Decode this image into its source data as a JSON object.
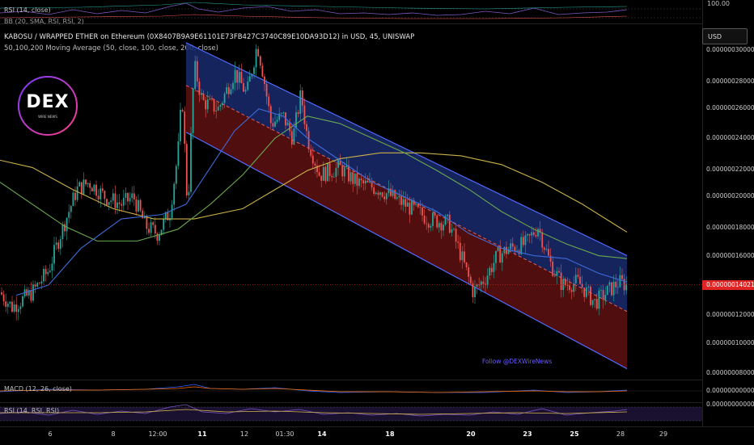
{
  "indicators": {
    "rsi_top": "RSI (14, close)",
    "bb_top": "BB (20, SMA, RSI, RSI, 2)",
    "macd": "MACD (12, 26, close)",
    "rsi_bottom": "RSI (14, RSI, RSI)",
    "rsi_top_level": "100.00"
  },
  "header": {
    "symbol_line": "KABOSU / WRAPPED ETHER on Ethereum (0X8407B9A9E61101E73FB427C3740C89E10DA93D12) in USD, 45, UNISWAP",
    "ma_line": "50,100,200 Moving Average (50, close, 100, close, 200, close)"
  },
  "currency_button": "USD",
  "logo": {
    "text": "DEX",
    "subtext": "WIRE NEWS"
  },
  "watermark": "Follow @DEXWireNews",
  "price_axis": {
    "ticks": [
      "0.0000003000000",
      "0.0000002800000",
      "0.0000002600000",
      "0.0000002400000",
      "0.0000002200000",
      "0.0000002000000",
      "0.0000001800000",
      "0.0000001600000",
      "0.0000001200000",
      "0.0000001000000",
      "0.0000000800000"
    ],
    "current_price": "0.0000001402132",
    "macd_value": "0.0000000000000",
    "macd_value2": "0.0000000000000"
  },
  "time_axis": {
    "labels": [
      "6",
      "8",
      "12:00",
      "11",
      "12",
      "01:30",
      "14",
      "18",
      "20",
      "23",
      "25",
      "28",
      "29"
    ],
    "bold_labels": [
      "11",
      "14",
      "18",
      "20",
      "23",
      "25"
    ]
  },
  "colors": {
    "background": "#000000",
    "bull": "#26a69a",
    "bear": "#ef5350",
    "ma50": "#3d6bd9",
    "ma100": "#6aa84f",
    "ma200": "#c9b04a",
    "channel_upper_fill": "#1a2a6e",
    "channel_lower_fill": "#5a1010",
    "channel_line": "#4f6bff",
    "midline": "#e06060"
  },
  "chart_data": {
    "type": "candlestick",
    "title": "KABOSU / WRAPPED ETHER on Ethereum in USD, 45, UNISWAP",
    "series": [
      {
        "name": "MA 50"
      },
      {
        "name": "MA 100"
      },
      {
        "name": "MA 200"
      }
    ],
    "ylim": [
      7e-08,
      3.1e-07
    ],
    "grid": false,
    "key_levels": {
      "start_price": 1.25e-07,
      "peak_price": 3.04e-07,
      "current_price": 1.402132e-07
    },
    "regression_channel": {
      "upper_start": 3.05e-07,
      "upper_end": 1.6e-07,
      "mid_start": 2.76e-07,
      "mid_end": 1.22e-07,
      "lower_start": 2.44e-07,
      "lower_end": 8.3e-08
    }
  }
}
